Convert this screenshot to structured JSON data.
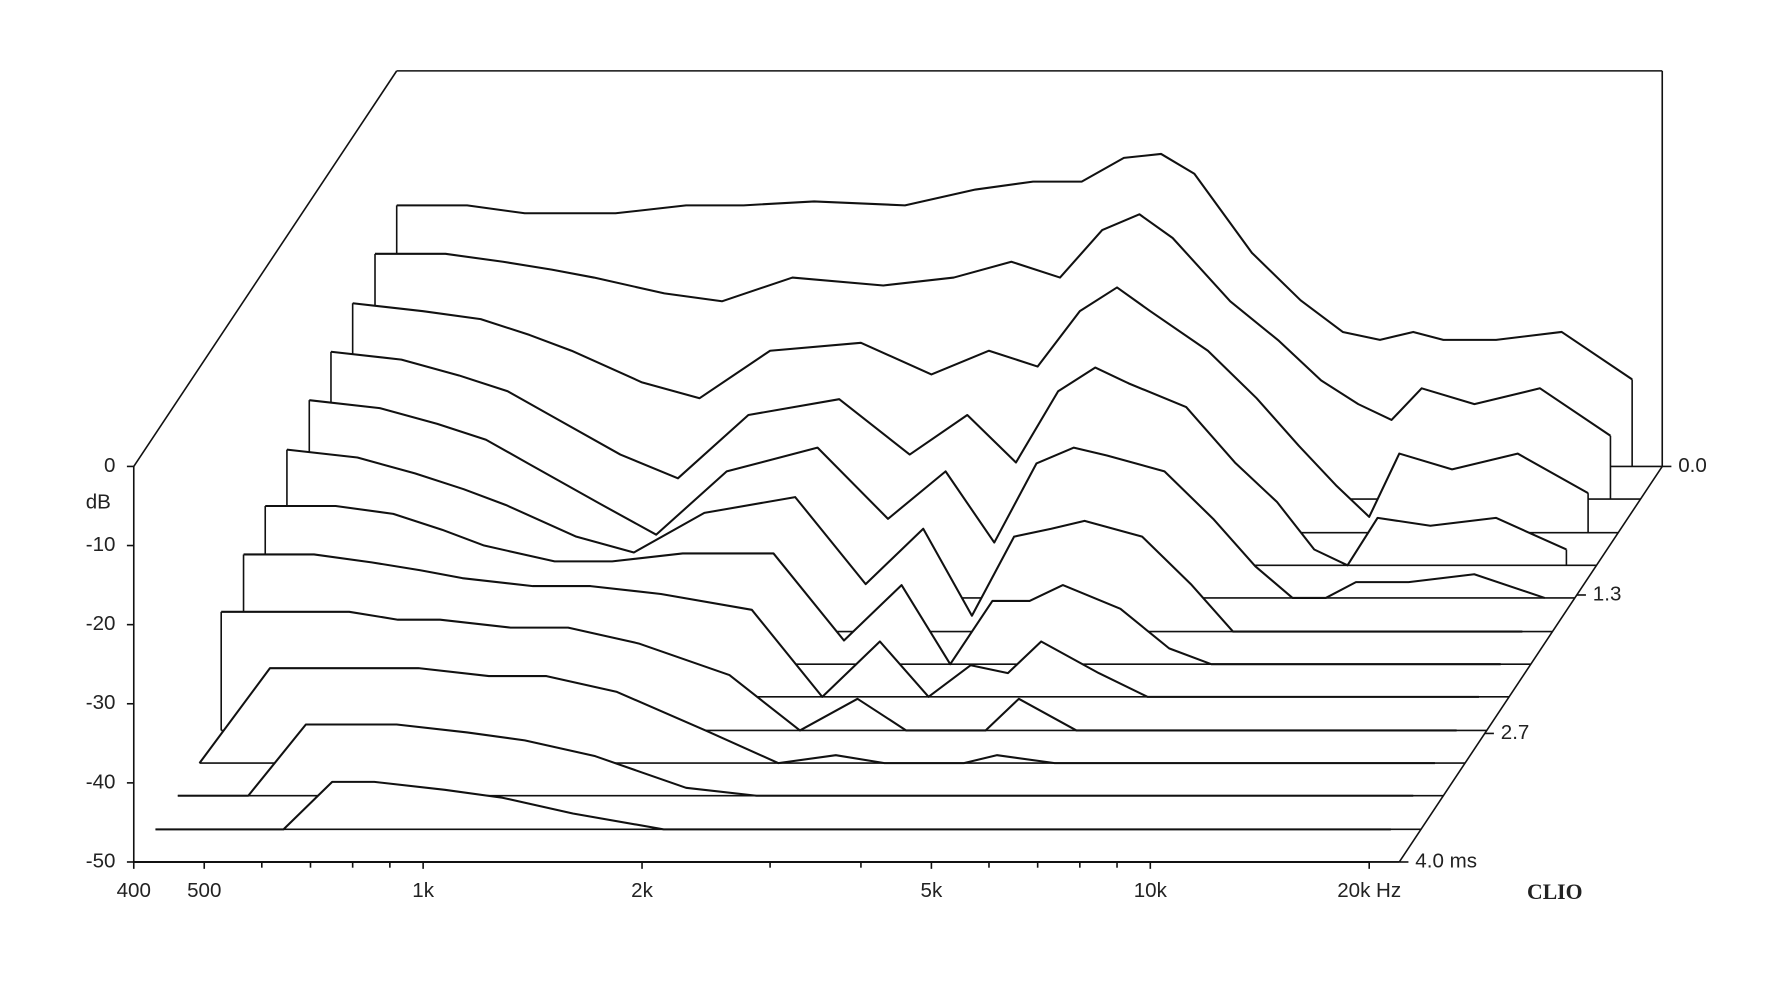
{
  "chart_data": {
    "type": "waterfall",
    "y_label": "dB",
    "brand": "CLIO",
    "x": [
      400,
      500,
      600,
      700,
      800,
      1000,
      1200,
      1500,
      2000,
      2500,
      3000,
      3500,
      4000,
      4500,
      5000,
      6000,
      7000,
      8000,
      9000,
      10000,
      11000,
      13000,
      16000,
      20000
    ],
    "xlim": [
      400,
      22000
    ],
    "xlog": true,
    "xticks": [
      {
        "value": 400,
        "label": "400"
      },
      {
        "value": 500,
        "label": "500"
      },
      {
        "value": 1000,
        "label": "1k"
      },
      {
        "value": 2000,
        "label": "2k"
      },
      {
        "value": 5000,
        "label": "5k"
      },
      {
        "value": 10000,
        "label": "10k"
      },
      {
        "value": 20000,
        "label": "20k Hz"
      }
    ],
    "xminorticks": [
      600,
      700,
      800,
      900,
      3000,
      4000,
      6000,
      7000,
      8000,
      9000
    ],
    "ylim": [
      -50,
      0
    ],
    "yticks": [
      0,
      -10,
      -20,
      -30,
      -40,
      -50
    ],
    "zlim": [
      0,
      4
    ],
    "zticks": [
      {
        "value": 0,
        "label": "0.0"
      },
      1.3,
      2.7,
      {
        "value": 4,
        "label": "4.0 ms"
      }
    ],
    "color": "#111111",
    "series": [
      {
        "t": 0,
        "values": [
          -17,
          -17,
          -18,
          -18,
          -18,
          -17,
          -17,
          -16.5,
          -17,
          -15,
          -14,
          -14,
          -11,
          -10.5,
          -13,
          -23,
          -29,
          -33,
          -34,
          -33,
          -34,
          -34,
          -33,
          -39
        ]
      },
      {
        "t": 0.33,
        "values": [
          -19,
          -19,
          -20,
          -21,
          -22,
          -24,
          -25,
          -22,
          -23,
          -22,
          -20,
          -22,
          -16,
          -14,
          -17,
          -25,
          -30,
          -35,
          -38,
          -40,
          -36,
          -38,
          -36,
          -42
        ]
      },
      {
        "t": 0.67,
        "values": [
          -21,
          -22,
          -23,
          -25,
          -27,
          -31,
          -33,
          -27,
          -26,
          -30,
          -27,
          -29,
          -22,
          -19,
          -22,
          -27,
          -33,
          -39,
          -44,
          -48,
          -40,
          -42,
          -40,
          -45
        ]
      },
      {
        "t": 1.0,
        "values": [
          -23,
          -24,
          -26,
          -28,
          -31,
          -36,
          -39,
          -31,
          -29,
          -36,
          -31,
          -37,
          -28,
          -25,
          -27,
          -30,
          -37,
          -42,
          -48,
          -50,
          -44,
          -45,
          -44,
          -48
        ]
      },
      {
        "t": 1.33,
        "values": [
          -25,
          -26,
          -28,
          -30,
          -33,
          -38,
          -42,
          -34,
          -31,
          -40,
          -34,
          -43,
          -33,
          -31,
          -32,
          -34,
          -40,
          -46,
          -50,
          -50,
          -48,
          -48,
          -47,
          -50
        ]
      },
      {
        "t": 1.67,
        "values": [
          -27,
          -28,
          -30,
          -32,
          -34,
          -38,
          -40,
          -35,
          -33,
          -44,
          -37,
          -48,
          -38,
          -37,
          -36,
          -38,
          -44,
          -50,
          -50,
          -50,
          -50,
          -50,
          -50,
          -50
        ]
      },
      {
        "t": 2.0,
        "values": [
          -30,
          -30,
          -31,
          -33,
          -35,
          -37,
          -37,
          -36,
          -36,
          -47,
          -40,
          -50,
          -42,
          -42,
          -40,
          -43,
          -48,
          -50,
          -50,
          -50,
          -50,
          -50,
          -50,
          -50
        ]
      },
      {
        "t": 2.33,
        "values": [
          -32,
          -32,
          -33,
          -34,
          -35,
          -36,
          -36,
          -37,
          -39,
          -50,
          -43,
          -50,
          -46,
          -47,
          -43,
          -47,
          -50,
          -50,
          -50,
          -50,
          -50,
          -50,
          -50,
          -50
        ]
      },
      {
        "t": 2.67,
        "values": [
          -35,
          -35,
          -35,
          -36,
          -36,
          -37,
          -37,
          -39,
          -43,
          -50,
          -46,
          -50,
          -50,
          -50,
          -46,
          -50,
          -50,
          -50,
          -50,
          -50,
          -50,
          -50,
          -50,
          -50
        ]
      },
      {
        "t": 3.0,
        "values": [
          -50,
          -38,
          -38,
          -38,
          -38,
          -39,
          -39,
          -41,
          -46,
          -50,
          -49,
          -50,
          -50,
          -50,
          -49,
          -50,
          -50,
          -50,
          -50,
          -50,
          -50,
          -50,
          -50,
          -50
        ]
      },
      {
        "t": 3.33,
        "values": [
          -50,
          -50,
          -41,
          -41,
          -41,
          -42,
          -43,
          -45,
          -49,
          -50,
          -50,
          -50,
          -50,
          -50,
          -50,
          -50,
          -50,
          -50,
          -50,
          -50,
          -50,
          -50,
          -50,
          -50
        ]
      },
      {
        "t": 3.67,
        "values": [
          -50,
          -50,
          -50,
          -44,
          -44,
          -45,
          -46,
          -48,
          -50,
          -50,
          -50,
          -50,
          -50,
          -50,
          -50,
          -50,
          -50,
          -50,
          -50,
          -50,
          -50,
          -50,
          -50,
          -50
        ]
      },
      {
        "t": 4.0,
        "values": [
          -50,
          -50,
          -50,
          -50,
          -50,
          -50,
          -50,
          -50,
          -50,
          -50,
          -50,
          -50,
          -50,
          -50,
          -50,
          -50,
          -50,
          -50,
          -50,
          -50,
          -50,
          -50,
          -50,
          -50
        ]
      }
    ]
  }
}
